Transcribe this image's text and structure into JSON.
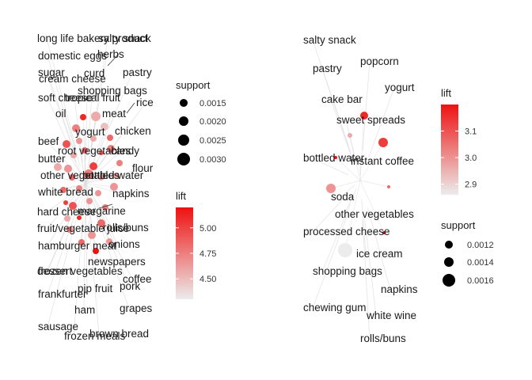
{
  "colors": {
    "lift_low": "#ececec",
    "lift_high": "#ee1111",
    "edge": "#d9d9d9",
    "point": "#000000"
  },
  "chart_data": [
    {
      "type": "network",
      "title": "",
      "nodes": [
        {
          "label": "long life bakery product"
        },
        {
          "label": "salty snack"
        },
        {
          "label": "domestic eggs"
        },
        {
          "label": "herbs"
        },
        {
          "label": "sugar"
        },
        {
          "label": "curd"
        },
        {
          "label": "pastry"
        },
        {
          "label": "cream cheese"
        },
        {
          "label": "shopping bags"
        },
        {
          "label": "soft cheese"
        },
        {
          "label": "tropical fruit"
        },
        {
          "label": "rice"
        },
        {
          "label": "oil"
        },
        {
          "label": "meat"
        },
        {
          "label": "yogurt"
        },
        {
          "label": "chicken"
        },
        {
          "label": "beef"
        },
        {
          "label": "root vegetables"
        },
        {
          "label": "candy"
        },
        {
          "label": "butter"
        },
        {
          "label": "flour"
        },
        {
          "label": "other vegetables"
        },
        {
          "label": "bottled water"
        },
        {
          "label": "white bread"
        },
        {
          "label": "napkins"
        },
        {
          "label": "hard cheese"
        },
        {
          "label": "margarine"
        },
        {
          "label": "fruit/vegetable juice"
        },
        {
          "label": "rolls/buns"
        },
        {
          "label": "hamburger meat"
        },
        {
          "label": "onions"
        },
        {
          "label": "newspapers"
        },
        {
          "label": "frozen vegetables"
        },
        {
          "label": "dessert"
        },
        {
          "label": "coffee"
        },
        {
          "label": "frankfurter"
        },
        {
          "label": "pip fruit"
        },
        {
          "label": "pork"
        },
        {
          "label": "ham"
        },
        {
          "label": "grapes"
        },
        {
          "label": "sausage"
        },
        {
          "label": "frozen meals"
        },
        {
          "label": "brown bread"
        }
      ],
      "legends": {
        "size": {
          "title": "support",
          "values": [
            0.0015,
            0.002,
            0.0025,
            0.003
          ],
          "labels": [
            "0.0015",
            "0.0020",
            "0.0025",
            "0.0030"
          ]
        },
        "color": {
          "title": "lift",
          "range": [
            4.3,
            5.2
          ],
          "ticks": [
            4.5,
            4.75,
            5.0
          ],
          "tick_labels": [
            "4.50",
            "4.75",
            "5.00"
          ]
        }
      }
    },
    {
      "type": "network",
      "title": "",
      "nodes": [
        {
          "label": "salty snack"
        },
        {
          "label": "popcorn"
        },
        {
          "label": "pastry"
        },
        {
          "label": "yogurt"
        },
        {
          "label": "cake bar"
        },
        {
          "label": "sweet spreads"
        },
        {
          "label": "bottled water"
        },
        {
          "label": "instant coffee"
        },
        {
          "label": "soda"
        },
        {
          "label": "other vegetables"
        },
        {
          "label": "processed cheese"
        },
        {
          "label": "ice cream"
        },
        {
          "label": "shopping bags"
        },
        {
          "label": "napkins"
        },
        {
          "label": "chewing gum"
        },
        {
          "label": "white wine"
        },
        {
          "label": "rolls/buns"
        }
      ],
      "legends": {
        "color": {
          "title": "lift",
          "range": [
            2.86,
            3.2
          ],
          "ticks": [
            2.9,
            3.0,
            3.1
          ],
          "tick_labels": [
            "2.9",
            "3.0",
            "3.1"
          ]
        },
        "size": {
          "title": "support",
          "values": [
            0.0012,
            0.0014,
            0.0016
          ],
          "labels": [
            "0.0012",
            "0.0014",
            "0.0016"
          ]
        }
      }
    }
  ]
}
